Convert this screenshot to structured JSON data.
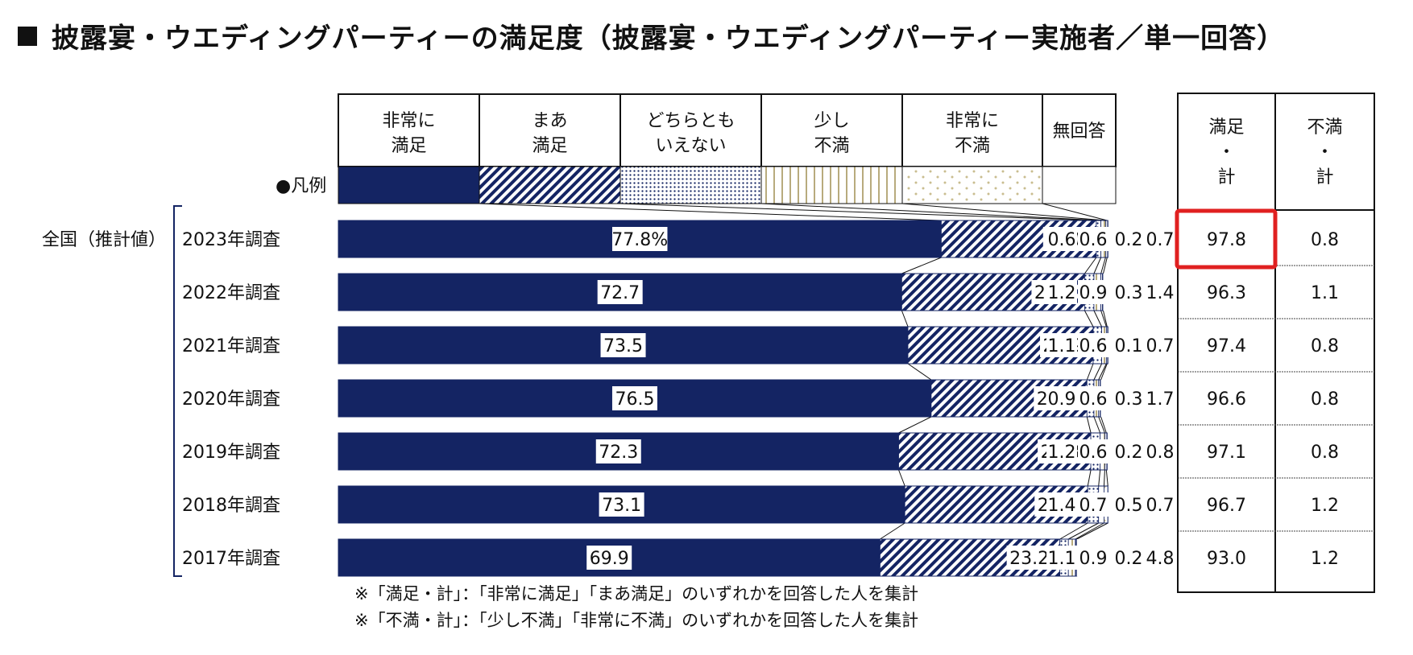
{
  "title": "披露宴・ウエディングパーティーの満足度（披露宴・ウエディングパーティー実施者／単一回答）",
  "legend_label": "●凡例",
  "group_label": "全国（推計値）",
  "right_headers": [
    [
      "満足",
      "・",
      "計"
    ],
    [
      "不満",
      "・",
      "計"
    ]
  ],
  "notes": [
    "※「満足・計」：「非常に満足」「まあ満足」のいずれかを回答した人を集計",
    "※「不満・計」：「少し不満」「非常に不満」のいずれかを回答した人を集計"
  ],
  "colors": {
    "very_satisfied": "#142463",
    "highlight": "#e02020",
    "dots": "#c9bd8f",
    "stripes": "#b8ab7d"
  },
  "chart_data": {
    "type": "bar",
    "stacked": true,
    "orientation": "horizontal",
    "unit": "%",
    "categories": [
      "2023年調査",
      "2022年調査",
      "2021年調査",
      "2020年調査",
      "2019年調査",
      "2018年調査",
      "2017年調査"
    ],
    "series": [
      {
        "name": [
          "非常に",
          "満足"
        ],
        "pattern": "solid",
        "values": [
          77.8,
          72.7,
          73.5,
          76.5,
          72.3,
          73.1,
          69.9
        ]
      },
      {
        "name": [
          "まあ",
          "満足"
        ],
        "pattern": "diagonal",
        "values": [
          20.0,
          23.6,
          23.9,
          20.1,
          24.8,
          23.6,
          23.2
        ]
      },
      {
        "name": [
          "どちらとも",
          "いえない"
        ],
        "pattern": "dots",
        "values": [
          0.6,
          1.2,
          1.1,
          0.9,
          1.2,
          1.4,
          1.1
        ]
      },
      {
        "name": [
          "少し",
          "不満"
        ],
        "pattern": "vertical",
        "values": [
          0.6,
          0.9,
          0.6,
          0.6,
          0.6,
          0.7,
          0.9
        ]
      },
      {
        "name": [
          "非常に",
          "不満"
        ],
        "pattern": "sparse-dots",
        "values": [
          0.2,
          0.3,
          0.1,
          0.3,
          0.2,
          0.5,
          0.2
        ]
      },
      {
        "name": [
          "無回答"
        ],
        "pattern": "none",
        "values": [
          0.7,
          1.4,
          0.7,
          1.7,
          0.8,
          0.7,
          4.8
        ]
      }
    ],
    "labels": [
      [
        "77.8%",
        "20.0",
        "0.6",
        "0.6",
        "0.2",
        "0.7"
      ],
      [
        "72.7",
        "23.6",
        "1.2",
        "0.9",
        "0.3",
        "1.4"
      ],
      [
        "73.5",
        "23.9",
        "1.1",
        "0.6",
        "0.1",
        "0.7"
      ],
      [
        "76.5",
        "20.1",
        "0.9",
        "0.6",
        "0.3",
        "1.7"
      ],
      [
        "72.3",
        "24.8",
        "1.2",
        "0.6",
        "0.2",
        "0.8"
      ],
      [
        "73.1",
        "23.6",
        "1.4",
        "0.7",
        "0.5",
        "0.7"
      ],
      [
        "69.9",
        "23.2",
        "1.1",
        "0.9",
        "0.2",
        "4.8"
      ]
    ],
    "totals": {
      "satisfied": [
        "97.8",
        "96.3",
        "97.4",
        "96.6",
        "97.1",
        "96.7",
        "93.0"
      ],
      "dissatisfied": [
        "0.8",
        "1.1",
        "0.8",
        "0.8",
        "0.8",
        "1.2",
        "1.2"
      ]
    },
    "highlighted_cell": {
      "row": 0,
      "column": "satisfied"
    },
    "xlim": [
      0,
      100
    ]
  }
}
